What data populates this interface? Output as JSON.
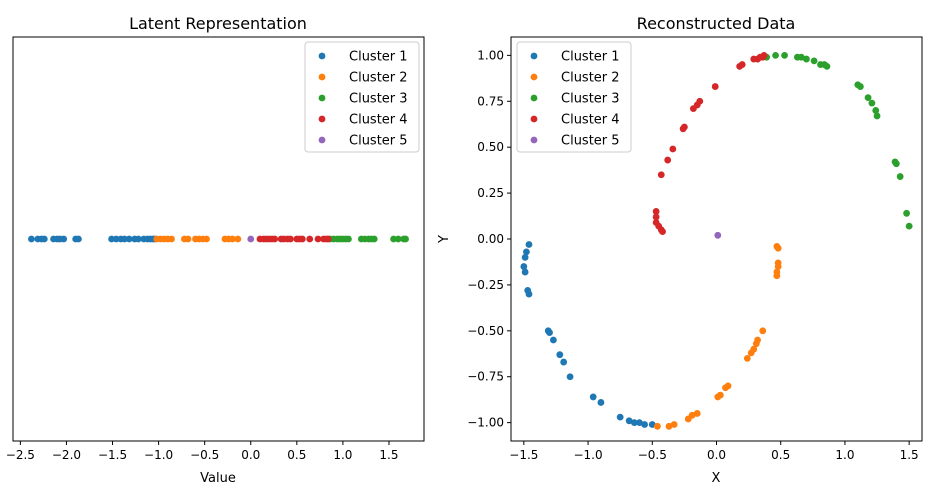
{
  "chart_data": [
    {
      "type": "scatter",
      "title": "Latent Representation",
      "xlabel": "Value",
      "ylabel": "",
      "xlim": [
        -2.58,
        1.88
      ],
      "ylim": [
        -1,
        1
      ],
      "xticks": [
        -2.5,
        -2.0,
        -1.5,
        -1.0,
        -0.5,
        0.0,
        0.5,
        1.0,
        1.5
      ],
      "xtick_labels": [
        "−2.5",
        "−2.0",
        "−1.5",
        "−1.0",
        "−0.5",
        "0.0",
        "0.5",
        "1.0",
        "1.5"
      ],
      "yticks": [],
      "legend_position": "top-right",
      "grid": false,
      "series": [
        {
          "name": "Cluster 1",
          "color": "#1f77b4",
          "x": [
            -2.38,
            -2.31,
            -2.27,
            -2.24,
            -2.14,
            -2.1,
            -2.07,
            -2.03,
            -1.9,
            -1.87,
            -1.51,
            -1.46,
            -1.41,
            -1.37,
            -1.32,
            -1.26,
            -1.22,
            -1.16,
            -1.12,
            -1.09,
            -1.06,
            -1.04
          ],
          "y": [
            0,
            0,
            0,
            0,
            0,
            0,
            0,
            0,
            0,
            0,
            0,
            0,
            0,
            0,
            0,
            0,
            0,
            0,
            0,
            0,
            0,
            0
          ]
        },
        {
          "name": "Cluster 2",
          "color": "#ff7f0e",
          "x": [
            -1.02,
            -0.98,
            -0.94,
            -0.9,
            -0.86,
            -0.72,
            -0.68,
            -0.6,
            -0.56,
            -0.52,
            -0.48,
            -0.28,
            -0.24,
            -0.2,
            -0.14
          ],
          "y": [
            0,
            0,
            0,
            0,
            0,
            0,
            0,
            0,
            0,
            0,
            0,
            0,
            0,
            0,
            0
          ]
        },
        {
          "name": "Cluster 3",
          "color": "#2ca02c",
          "x": [
            0.86,
            0.9,
            0.94,
            0.97,
            1.0,
            1.03,
            1.06,
            1.2,
            1.24,
            1.28,
            1.31,
            1.34,
            1.55,
            1.6,
            1.66,
            1.68
          ],
          "y": [
            0,
            0,
            0,
            0,
            0,
            0,
            0,
            0,
            0,
            0,
            0,
            0,
            0,
            0,
            0,
            0
          ]
        },
        {
          "name": "Cluster 4",
          "color": "#d62728",
          "x": [
            0.1,
            0.14,
            0.17,
            0.2,
            0.23,
            0.26,
            0.33,
            0.36,
            0.4,
            0.43,
            0.5,
            0.53,
            0.56,
            0.64,
            0.73,
            0.79,
            0.82,
            0.84
          ],
          "y": [
            0,
            0,
            0,
            0,
            0,
            0,
            0,
            0,
            0,
            0,
            0,
            0,
            0,
            0,
            0,
            0,
            0,
            0
          ]
        },
        {
          "name": "Cluster 5",
          "color": "#9467bd",
          "x": [
            0.0
          ],
          "y": [
            0
          ]
        }
      ]
    },
    {
      "type": "scatter",
      "title": "Reconstructed Data",
      "xlabel": "X",
      "ylabel": "Y",
      "xlim": [
        -1.6,
        1.6
      ],
      "ylim": [
        -1.1,
        1.1
      ],
      "xticks": [
        -1.5,
        -1.0,
        -0.5,
        0.0,
        0.5,
        1.0,
        1.5
      ],
      "xtick_labels": [
        "−1.5",
        "−1.0",
        "−0.5",
        "0.0",
        "0.5",
        "1.0",
        "1.5"
      ],
      "yticks": [
        -1.0,
        -0.75,
        -0.5,
        -0.25,
        0.0,
        0.25,
        0.5,
        0.75,
        1.0
      ],
      "ytick_labels": [
        "−1.00",
        "−0.75",
        "−0.50",
        "−0.25",
        "0.00",
        "0.25",
        "0.50",
        "0.75",
        "1.00"
      ],
      "legend_position": "top-left",
      "grid": false,
      "series": [
        {
          "name": "Cluster 1",
          "color": "#1f77b4",
          "x": [
            -1.46,
            -1.48,
            -1.49,
            -1.5,
            -1.49,
            -1.47,
            -1.46,
            -1.31,
            -1.3,
            -1.27,
            -1.22,
            -1.19,
            -1.14,
            -0.96,
            -0.9,
            -0.75,
            -0.68,
            -0.64,
            -0.6,
            -0.56,
            -0.5
          ],
          "y": [
            -0.03,
            -0.07,
            -0.1,
            -0.15,
            -0.18,
            -0.28,
            -0.3,
            -0.5,
            -0.51,
            -0.55,
            -0.63,
            -0.67,
            -0.75,
            -0.86,
            -0.89,
            -0.97,
            -0.99,
            -1.0,
            -1.0,
            -1.01,
            -1.01
          ]
        },
        {
          "name": "Cluster 2",
          "color": "#ff7f0e",
          "x": [
            -0.46,
            -0.37,
            -0.33,
            -0.22,
            -0.19,
            -0.15,
            0.01,
            0.03,
            0.07,
            0.09,
            0.24,
            0.27,
            0.29,
            0.31,
            0.32,
            0.36,
            0.47,
            0.48,
            0.47,
            0.47,
            0.48,
            0.48
          ],
          "y": [
            -1.02,
            -1.02,
            -1.01,
            -0.98,
            -0.96,
            -0.95,
            -0.86,
            -0.85,
            -0.81,
            -0.8,
            -0.65,
            -0.62,
            -0.6,
            -0.57,
            -0.55,
            -0.5,
            -0.04,
            -0.05,
            -0.2,
            -0.18,
            -0.15,
            -0.13
          ]
        },
        {
          "name": "Cluster 3",
          "color": "#2ca02c",
          "x": [
            0.39,
            0.46,
            0.53,
            0.63,
            0.66,
            0.7,
            0.76,
            0.81,
            0.84,
            0.86,
            1.1,
            1.12,
            1.18,
            1.21,
            1.24,
            1.25,
            1.39,
            1.4,
            1.43,
            1.48,
            1.5
          ],
          "y": [
            0.99,
            1.0,
            1.0,
            0.99,
            0.99,
            0.98,
            0.97,
            0.95,
            0.95,
            0.94,
            0.84,
            0.83,
            0.77,
            0.74,
            0.7,
            0.67,
            0.42,
            0.41,
            0.34,
            0.14,
            0.07
          ]
        },
        {
          "name": "Cluster 4",
          "color": "#d62728",
          "x": [
            -0.47,
            -0.47,
            -0.47,
            -0.45,
            -0.43,
            -0.42,
            -0.43,
            -0.38,
            -0.34,
            -0.26,
            -0.25,
            -0.18,
            -0.15,
            -0.13,
            -0.01,
            0.18,
            0.2,
            0.29,
            0.32,
            0.34,
            0.36,
            0.37
          ],
          "y": [
            0.15,
            0.12,
            0.09,
            0.07,
            0.05,
            0.04,
            0.35,
            0.43,
            0.49,
            0.6,
            0.61,
            0.71,
            0.73,
            0.75,
            0.83,
            0.94,
            0.95,
            0.98,
            0.98,
            0.99,
            0.99,
            1.0
          ]
        },
        {
          "name": "Cluster 5",
          "color": "#9467bd",
          "x": [
            0.01
          ],
          "y": [
            0.02
          ]
        }
      ]
    }
  ]
}
